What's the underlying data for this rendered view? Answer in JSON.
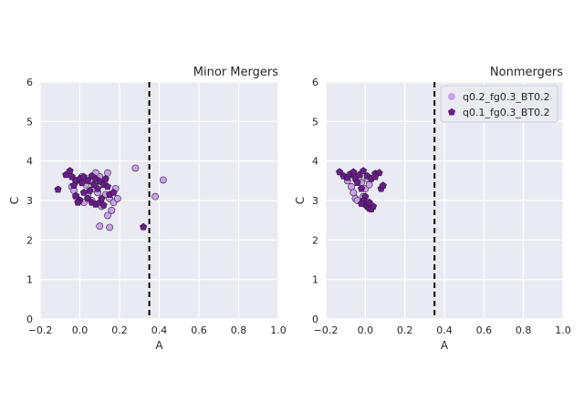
{
  "chart_data": [
    {
      "type": "scatter",
      "title": "Minor Mergers",
      "xlabel": "A",
      "ylabel": "C",
      "xlim": [
        -0.2,
        1.0
      ],
      "ylim": [
        0,
        6
      ],
      "xticks": [
        "−0.2",
        "0.0",
        "0.2",
        "0.4",
        "0.6",
        "0.8",
        "1.0"
      ],
      "yticks": [
        "0",
        "1",
        "2",
        "3",
        "4",
        "5",
        "6"
      ],
      "threshold_line": {
        "x": 0.35,
        "style": "dashed"
      },
      "grid": true,
      "legend": null,
      "series": [
        {
          "name": "q0.2_fg0.3_BT0.2",
          "marker": "circle",
          "color": "#c8a2e8",
          "points": [
            [
              -0.04,
              3.35
            ],
            [
              -0.03,
              3.25
            ],
            [
              -0.02,
              3.1
            ],
            [
              0.0,
              3.0
            ],
            [
              0.02,
              2.95
            ],
            [
              0.03,
              3.4
            ],
            [
              0.05,
              3.5
            ],
            [
              0.07,
              3.3
            ],
            [
              0.09,
              3.2
            ],
            [
              0.1,
              3.6
            ],
            [
              0.12,
              3.45
            ],
            [
              0.13,
              3.15
            ],
            [
              0.15,
              3.05
            ],
            [
              0.17,
              2.95
            ],
            [
              0.19,
              3.05
            ],
            [
              0.18,
              3.3
            ],
            [
              0.14,
              3.7
            ],
            [
              0.08,
              3.7
            ],
            [
              0.01,
              3.6
            ],
            [
              -0.02,
              3.5
            ],
            [
              0.11,
              2.85
            ],
            [
              0.16,
              2.75
            ],
            [
              0.14,
              2.62
            ],
            [
              0.1,
              2.35
            ],
            [
              0.15,
              2.32
            ],
            [
              0.28,
              3.82
            ],
            [
              0.38,
              3.1
            ],
            [
              0.42,
              3.52
            ],
            [
              0.04,
              3.15
            ],
            [
              0.06,
              3.0
            ]
          ]
        },
        {
          "name": "q0.1_fg0.3_BT0.2",
          "marker": "pentagon",
          "color": "#6a1b8a",
          "points": [
            [
              -0.11,
              3.28
            ],
            [
              -0.07,
              3.65
            ],
            [
              -0.05,
              3.75
            ],
            [
              -0.04,
              3.6
            ],
            [
              -0.02,
              3.5
            ],
            [
              -0.03,
              3.38
            ],
            [
              0.0,
              3.55
            ],
            [
              0.01,
              3.45
            ],
            [
              0.02,
              3.6
            ],
            [
              0.04,
              3.5
            ],
            [
              0.06,
              3.62
            ],
            [
              0.08,
              3.55
            ],
            [
              0.1,
              3.48
            ],
            [
              0.12,
              3.4
            ],
            [
              0.14,
              3.35
            ],
            [
              0.02,
              3.2
            ],
            [
              0.04,
              3.05
            ],
            [
              0.06,
              2.95
            ],
            [
              0.08,
              2.9
            ],
            [
              0.1,
              2.95
            ],
            [
              0.12,
              2.88
            ],
            [
              0.0,
              3.0
            ],
            [
              -0.01,
              2.95
            ],
            [
              0.15,
              3.15
            ],
            [
              0.17,
              3.2
            ],
            [
              0.05,
              3.25
            ],
            [
              0.09,
              3.3
            ],
            [
              0.13,
              3.55
            ],
            [
              0.11,
              3.05
            ],
            [
              0.32,
              2.33
            ],
            [
              -0.02,
              3.12
            ],
            [
              0.07,
              3.4
            ]
          ]
        }
      ]
    },
    {
      "type": "scatter",
      "title": "Nonmergers",
      "xlabel": "A",
      "ylabel": "C",
      "xlim": [
        -0.2,
        1.0
      ],
      "ylim": [
        0,
        6
      ],
      "xticks": [
        "−0.2",
        "0.0",
        "0.2",
        "0.4",
        "0.6",
        "0.8",
        "1.0"
      ],
      "yticks": [
        "0",
        "1",
        "2",
        "3",
        "4",
        "5",
        "6"
      ],
      "threshold_line": {
        "x": 0.35,
        "style": "dashed"
      },
      "grid": true,
      "legend": "top-right",
      "series": [
        {
          "name": "q0.2_fg0.3_BT0.2",
          "marker": "circle",
          "color": "#c8a2e8",
          "points": [
            [
              -0.09,
              3.5
            ],
            [
              -0.07,
              3.35
            ],
            [
              -0.06,
              3.2
            ],
            [
              -0.05,
              3.05
            ],
            [
              -0.04,
              3.0
            ],
            [
              -0.03,
              3.6
            ],
            [
              -0.02,
              3.45
            ],
            [
              0.0,
              3.3
            ],
            [
              0.01,
              3.55
            ],
            [
              -0.08,
              3.65
            ],
            [
              -0.01,
              3.1
            ],
            [
              0.02,
              3.4
            ]
          ]
        },
        {
          "name": "q0.1_fg0.3_BT0.2",
          "marker": "pentagon",
          "color": "#6a1b8a",
          "points": [
            [
              -0.13,
              3.72
            ],
            [
              -0.11,
              3.62
            ],
            [
              -0.09,
              3.58
            ],
            [
              -0.07,
              3.68
            ],
            [
              -0.05,
              3.55
            ],
            [
              -0.03,
              3.65
            ],
            [
              -0.01,
              3.75
            ],
            [
              0.01,
              3.62
            ],
            [
              0.03,
              3.55
            ],
            [
              0.05,
              3.68
            ],
            [
              0.07,
              3.7
            ],
            [
              0.08,
              3.3
            ],
            [
              0.09,
              3.38
            ],
            [
              -0.04,
              3.45
            ],
            [
              -0.02,
              3.3
            ],
            [
              0.0,
              3.1
            ],
            [
              -0.01,
              3.0
            ],
            [
              0.0,
              2.9
            ],
            [
              0.01,
              2.85
            ],
            [
              0.02,
              2.8
            ],
            [
              0.03,
              2.78
            ],
            [
              0.04,
              2.85
            ],
            [
              0.02,
              2.95
            ],
            [
              -0.02,
              2.92
            ],
            [
              0.05,
              3.6
            ],
            [
              -0.06,
              3.72
            ]
          ]
        }
      ]
    }
  ]
}
